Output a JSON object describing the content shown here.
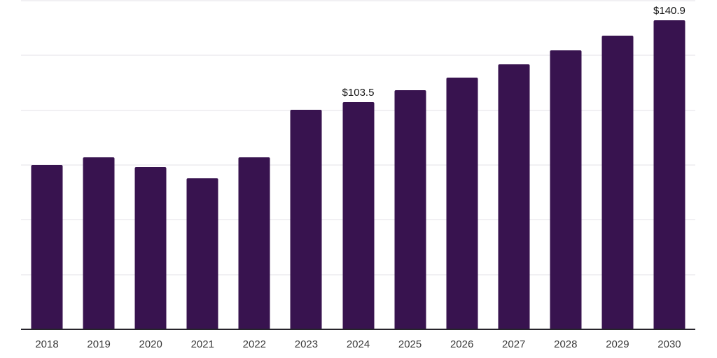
{
  "chart_data": {
    "type": "bar",
    "title": "",
    "xlabel": "",
    "ylabel": "",
    "categories": [
      "2018",
      "2019",
      "2020",
      "2021",
      "2022",
      "2023",
      "2024",
      "2025",
      "2026",
      "2027",
      "2028",
      "2029",
      "2030"
    ],
    "values": [
      74.6,
      78.3,
      73.7,
      68.5,
      78.1,
      99.9,
      103.5,
      109.0,
      114.7,
      120.8,
      127.1,
      133.8,
      140.9
    ],
    "data_labels": [
      {
        "index": 6,
        "text": "$103.5"
      },
      {
        "index": 12,
        "text": "$140.9"
      }
    ],
    "ylim": [
      0,
      150
    ],
    "grid_step": 25,
    "grid": true,
    "legend": false,
    "y_tick_labels_visible": false,
    "colors": {
      "bar": "#38134F",
      "grid": "#F1F0F3",
      "axis": "#26242B",
      "tick_label": "#3A3A3A",
      "data_label": "#141414",
      "background": "#FFFFFF"
    }
  }
}
